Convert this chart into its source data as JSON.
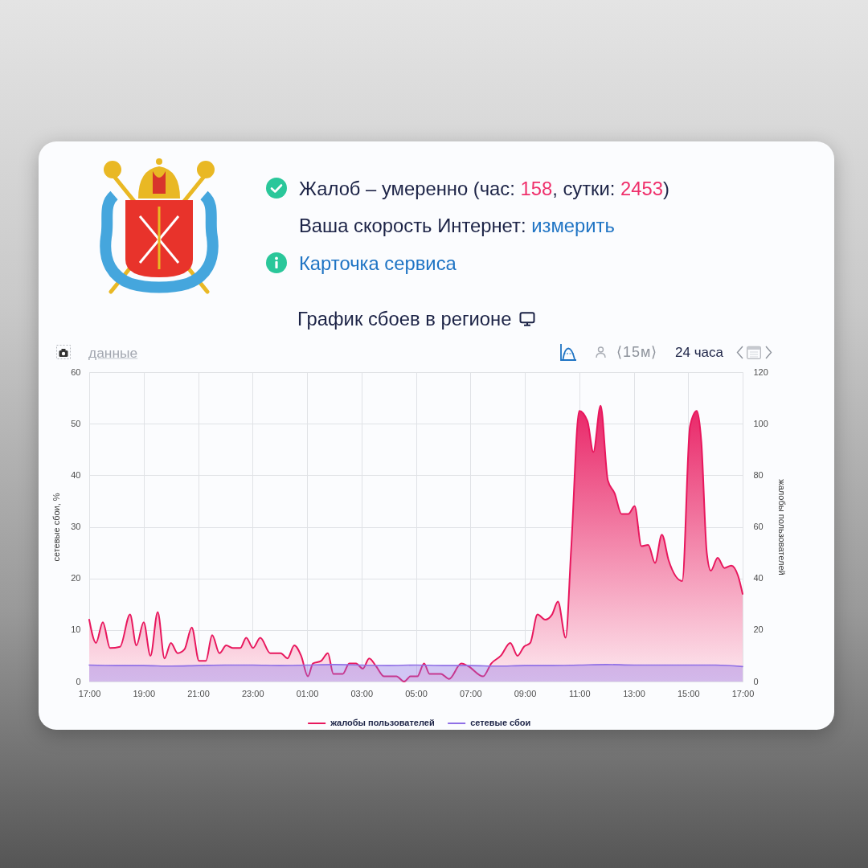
{
  "chart_data": {
    "type": "area",
    "title": "График сбоев в регионе",
    "ylabel": "сетевые сбои, %",
    "y2label": "жалобы пользователей",
    "xlim": [
      "--01-01T17:00",
      "--01-02T17:00"
    ],
    "xticks": [
      {
        "value": "--01-01T17:00",
        "label": "17:00"
      },
      {
        "value": "--01-01T19:00",
        "label": "19:00"
      },
      {
        "value": "--01-01T21:00",
        "label": "21:00"
      },
      {
        "value": "--01-01T23:00",
        "label": "23:00"
      },
      {
        "value": "--01-02T01:00",
        "label": "01:00"
      },
      {
        "value": "--01-02T03:00",
        "label": "03:00"
      },
      {
        "value": "--01-02T05:00",
        "label": "05:00"
      },
      {
        "value": "--01-02T07:00",
        "label": "07:00"
      },
      {
        "value": "--01-02T09:00",
        "label": "09:00"
      },
      {
        "value": "--01-02T11:00",
        "label": "11:00"
      },
      {
        "value": "--01-02T13:00",
        "label": "13:00"
      },
      {
        "value": "--01-02T15:00",
        "label": "15:00"
      },
      {
        "value": "--01-02T17:00",
        "label": "17:00"
      }
    ],
    "ylim": [
      0,
      60
    ],
    "yticks": [
      0,
      10,
      20,
      30,
      40,
      50,
      60
    ],
    "y2lim": [
      0,
      120
    ],
    "y2ticks": [
      0,
      20,
      40,
      60,
      80,
      100,
      120
    ],
    "grid": true,
    "legend": "bottom",
    "series": [
      {
        "name": "жалобы пользователей",
        "color": "#e8175d",
        "axis": "y2",
        "x": [
          "--01-01T17:00",
          "--01-01T17:15",
          "--01-01T17:30",
          "--01-01T17:46",
          "--01-01T18:08",
          "--01-01T18:30",
          "--01-01T18:44",
          "--01-01T19:00",
          "--01-01T19:15",
          "--01-01T19:31",
          "--01-01T19:46",
          "--01-01T20:00",
          "--01-01T20:15",
          "--01-01T20:30",
          "--01-01T20:46",
          "--01-01T21:02",
          "--01-01T21:17",
          "--01-01T21:31",
          "--01-01T21:47",
          "--01-01T22:02",
          "--01-01T22:16",
          "--01-01T22:33",
          "--01-01T22:46",
          "--01-01T23:01",
          "--01-01T23:17",
          "--01-01T23:39",
          "--01-02T00:02",
          "--01-02T00:17",
          "--01-02T00:32",
          "--01-02T00:47",
          "--01-02T01:02",
          "--01-02T01:13",
          "--01-02T01:31",
          "--01-02T01:46",
          "--01-02T01:58",
          "--01-02T02:19",
          "--01-02T02:33",
          "--01-02T02:48",
          "--01-02T03:03",
          "--01-02T03:17",
          "--01-02T03:32",
          "--01-02T03:50",
          "--01-02T04:17",
          "--01-02T04:34",
          "--01-02T04:48",
          "--01-02T05:03",
          "--01-02T05:18",
          "--01-02T05:30",
          "--01-02T05:55",
          "--01-02T06:13",
          "--01-02T06:40",
          "--01-02T06:55",
          "--01-02T07:28",
          "--01-02T07:46",
          "--01-02T08:07",
          "--01-02T08:28",
          "--01-02T08:44",
          "--01-02T08:58",
          "--01-02T09:12",
          "--01-02T09:28",
          "--01-02T09:45",
          "--01-02T10:00",
          "--01-02T10:13",
          "--01-02T10:30",
          "--01-02T10:42",
          "--01-02T11:00",
          "--01-02T11:18",
          "--01-02T11:31",
          "--01-02T11:47",
          "--01-02T12:03",
          "--01-02T12:18",
          "--01-02T12:33",
          "--01-02T12:48",
          "--01-02T13:02",
          "--01-02T13:17",
          "--01-02T13:32",
          "--01-02T13:47",
          "--01-02T14:02",
          "--01-02T14:17",
          "--01-02T14:47",
          "--01-02T15:04",
          "--01-02T15:19",
          "--01-02T15:29",
          "--01-02T15:41",
          "--01-02T15:50",
          "--01-02T16:05",
          "--01-02T16:20",
          "--01-02T16:35",
          "--01-02T16:50",
          "--01-02T17:00"
        ],
        "values": [
          24,
          15,
          23,
          13,
          13.5,
          26,
          14,
          23,
          10,
          27,
          9,
          15,
          11,
          12.5,
          21,
          8,
          8,
          18,
          11,
          14,
          13,
          13,
          17,
          13,
          17,
          11,
          11,
          9,
          14,
          10,
          2,
          7,
          8,
          11,
          3,
          3,
          7,
          7,
          5,
          9,
          6,
          2,
          2,
          0,
          2,
          2,
          7,
          3,
          3,
          1,
          7,
          6,
          2,
          7,
          10,
          15,
          10,
          13.5,
          15,
          26,
          24,
          26,
          31,
          17,
          51,
          105,
          101,
          89,
          107,
          78,
          73,
          65,
          65,
          68,
          52.5,
          53,
          46,
          57,
          47,
          39,
          99,
          105,
          93,
          50,
          43,
          48,
          44,
          45,
          41,
          34
        ]
      },
      {
        "name": "сетевые сбои",
        "color": "#8f6fe6",
        "x": [
          "--01-01T17:00",
          "--01-01T18:00",
          "--01-01T19:00",
          "--01-01T20:00",
          "--01-01T21:00",
          "--01-01T22:00",
          "--01-01T23:00",
          "--01-02T00:00",
          "--01-02T01:00",
          "--01-02T02:00",
          "--01-02T03:00",
          "--01-02T04:00",
          "--01-02T05:00",
          "--01-02T06:00",
          "--01-02T07:00",
          "--01-02T08:00",
          "--01-02T09:00",
          "--01-02T10:00",
          "--01-02T11:00",
          "--01-02T12:00",
          "--01-02T13:00",
          "--01-02T14:00",
          "--01-02T15:00",
          "--01-02T16:00",
          "--01-02T17:00"
        ],
        "values": [
          3.2,
          3.1,
          3.1,
          3.0,
          3.1,
          3.2,
          3.2,
          3.1,
          3.2,
          3.3,
          3.2,
          3.1,
          3.2,
          3.1,
          3.1,
          3.0,
          3.1,
          3.1,
          3.2,
          3.3,
          3.2,
          3.2,
          3.2,
          3.2,
          2.9
        ]
      }
    ],
    "annotations": [
      "Жалоб – умеренно (час: 158, сутки: 2453)",
      "Ваша скорость Интернет: измерить",
      "Карточка сервиса",
      "данные",
      "⟨15м⟩",
      "24 часа"
    ]
  }
}
